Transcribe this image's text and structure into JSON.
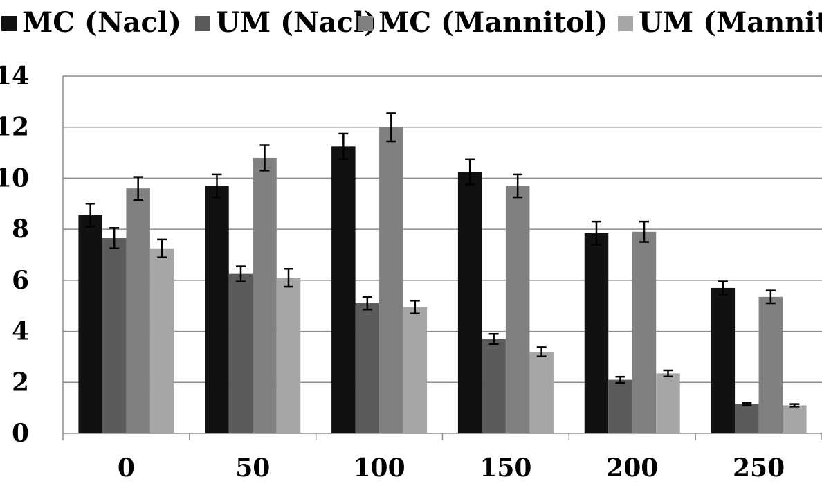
{
  "chart_data": {
    "type": "bar",
    "title": "",
    "xlabel": "",
    "ylabel": "",
    "categories": [
      "0",
      "50",
      "100",
      "150",
      "200",
      "250"
    ],
    "ylim": [
      0,
      14
    ],
    "yticks": [
      "0",
      "2",
      "4",
      "6",
      "8",
      "10",
      "12",
      "14"
    ],
    "grid": true,
    "legend_position": "top",
    "series": [
      {
        "name": "MC (Nacl)",
        "color": "#111111",
        "values": [
          8.55,
          9.7,
          11.25,
          10.25,
          7.85,
          5.7
        ],
        "errors": [
          0.45,
          0.45,
          0.5,
          0.5,
          0.45,
          0.25
        ]
      },
      {
        "name": "UM (Nacl)",
        "color": "#5b5b5b",
        "values": [
          7.65,
          6.25,
          5.1,
          3.7,
          2.1,
          1.15
        ],
        "errors": [
          0.4,
          0.3,
          0.25,
          0.2,
          0.12,
          0.05
        ]
      },
      {
        "name": "MC (Mannitol)",
        "color": "#808080",
        "values": [
          9.6,
          10.8,
          12.0,
          9.7,
          7.9,
          5.35
        ],
        "errors": [
          0.45,
          0.5,
          0.55,
          0.45,
          0.4,
          0.25
        ]
      },
      {
        "name": "UM (Mannitol)",
        "color": "#a6a6a6",
        "values": [
          7.25,
          6.1,
          4.95,
          3.2,
          2.35,
          1.1
        ],
        "errors": [
          0.35,
          0.35,
          0.25,
          0.18,
          0.12,
          0.05
        ]
      }
    ]
  }
}
